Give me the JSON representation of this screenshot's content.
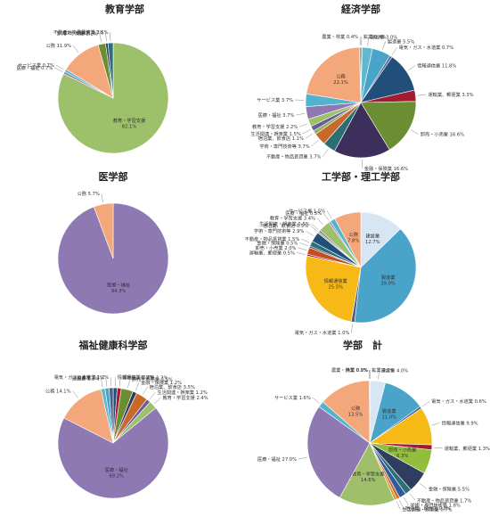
{
  "colors": {
    "education": "#9dc16a",
    "medical": "#8f79b3",
    "public": "#f4a77a",
    "service": "#52b3cf",
    "retail": "#2f5e8c",
    "finance": "#2f3e5f",
    "realestate": "#87a9d4",
    "mining": "#7a6aa7",
    "construction": "#61b8cd",
    "manufacturing": "#4aa3c8",
    "electric": "#4a5f8a",
    "infocomm": "#1f4f7a",
    "transport": "#a31b2f",
    "finance_g": "#6b8e33",
    "realestate_g": "#6b5a9a",
    "science": "#2c6e74",
    "hotel": "#c8692b",
    "living": "#8faf5a",
    "medical2": "#7c6aa8",
    "public2": "#f4a77a",
    "manufacturing_y": "#f6b916",
    "construction_w": "#d8e6f4",
    "agriculture": "#6f7f8f",
    "fishery": "#a0a0a0",
    "service2": "#52b3cf",
    "wholesale_g": "#93bd3c",
    "hotel2": "#2f5b9e",
    "living2": "#d99634",
    "edu2": "#9fbf6b",
    "infocomm_y": "#f6b916",
    "transport_r": "#c84b22",
    "realestate2": "#1f3f66"
  },
  "chart_data": [
    {
      "type": "pie",
      "title": "教育学部",
      "slices": [
        {
          "label": "教育・学習支援",
          "value": 82.1,
          "color": "#9dc16a",
          "inside": true
        },
        {
          "label": "医療・福祉",
          "value": 0.7,
          "color": "#8f79b3"
        },
        {
          "label": "サービス業",
          "value": 0.7,
          "color": "#52b3cf"
        },
        {
          "label": "公務",
          "value": 11.9,
          "color": "#f4a77a"
        },
        {
          "label": "卸売・小売業",
          "value": 2.2,
          "color": "#6b8e33"
        },
        {
          "label": "金融・保険業",
          "value": 0.7,
          "color": "#2f3e5f"
        },
        {
          "label": "不動産・物品賃貸業",
          "value": 1.5,
          "color": "#2c6e74"
        }
      ]
    },
    {
      "type": "pie",
      "title": "経済学部",
      "slices": [
        {
          "label": "鉱業",
          "value": 0.4,
          "color": "#7a6aa7"
        },
        {
          "label": "建設業",
          "value": 3.0,
          "color": "#61b8cd"
        },
        {
          "label": "製造業",
          "value": 5.5,
          "color": "#4aa3c8"
        },
        {
          "label": "電気・ガス・水道業",
          "value": 0.7,
          "color": "#4a5f8a"
        },
        {
          "label": "情報通信業",
          "value": 11.8,
          "color": "#1f4f7a"
        },
        {
          "label": "運輸業、郵便業",
          "value": 3.3,
          "color": "#a31b2f"
        },
        {
          "label": "卸売・小売業",
          "value": 16.6,
          "color": "#6b8e33"
        },
        {
          "label": "金融・保険業",
          "value": 16.6,
          "color": "#3c2f5c"
        },
        {
          "label": "不動産・物品賃貸業",
          "value": 3.7,
          "color": "#2c6e74"
        },
        {
          "label": "学術・専門技術等",
          "value": 3.7,
          "color": "#c8692b"
        },
        {
          "label": "宿泊業、飲食店",
          "value": 1.1,
          "color": "#8faf5a"
        },
        {
          "label": "生活関連・娯楽業",
          "value": 1.5,
          "color": "#6b5a9a"
        },
        {
          "label": "教育・学習支援",
          "value": 2.2,
          "color": "#9dc16a"
        },
        {
          "label": "医療・福祉",
          "value": 3.7,
          "color": "#8f79b3"
        },
        {
          "label": "サービス業",
          "value": 3.7,
          "color": "#52b3cf"
        },
        {
          "label": "公務",
          "value": 22.1,
          "color": "#f4a77a",
          "inside": true
        },
        {
          "label": "農業・林業",
          "value": 0.4,
          "color": "#6f7f8f"
        }
      ]
    },
    {
      "type": "pie",
      "title": "医学部",
      "slices": [
        {
          "label": "医療・福祉",
          "value": 94.3,
          "color": "#8f79b3",
          "inside": true
        },
        {
          "label": "公務",
          "value": 5.7,
          "color": "#f4a77a"
        }
      ]
    },
    {
      "type": "pie",
      "title": "工学部・理工学部",
      "slices": [
        {
          "label": "建設業",
          "value": 12.7,
          "color": "#d8e6f4",
          "inside": true
        },
        {
          "label": "製造業",
          "value": 39.0,
          "color": "#4aa3c8",
          "inside": true
        },
        {
          "label": "電気・ガス・水道業",
          "value": 1.0,
          "color": "#4a5f8a"
        },
        {
          "label": "情報通信業",
          "value": 25.5,
          "color": "#f6b916",
          "inside": true
        },
        {
          "label": "運輸業、郵便業",
          "value": 0.5,
          "color": "#a31b2f"
        },
        {
          "label": "卸売・小売業",
          "value": 2.0,
          "color": "#c84b22"
        },
        {
          "label": "金融・保険業",
          "value": 0.5,
          "color": "#2f3e5f"
        },
        {
          "label": "不動産・物品賃貸業",
          "value": 1.5,
          "color": "#2c6e74"
        },
        {
          "label": "学術・専門技術等",
          "value": 2.9,
          "color": "#1f4f7a"
        },
        {
          "label": "宿泊業、飲食店",
          "value": 0.5,
          "color": "#8faf5a"
        },
        {
          "label": "生活関連・娯楽業",
          "value": 0.5,
          "color": "#6b5a9a"
        },
        {
          "label": "教育・学習支援",
          "value": 3.4,
          "color": "#9dc16a"
        },
        {
          "label": "医療・福祉",
          "value": 0.5,
          "color": "#8f79b3"
        },
        {
          "label": "サービス業",
          "value": 1.5,
          "color": "#52b3cf"
        },
        {
          "label": "公務",
          "value": 7.8,
          "color": "#f4a77a",
          "inside": true
        }
      ]
    },
    {
      "type": "pie",
      "title": "福祉健康科学部",
      "slices": [
        {
          "label": "情報通信業",
          "value": 1.2,
          "color": "#1f4f7a"
        },
        {
          "label": "運輸業、郵便業",
          "value": 1.2,
          "color": "#a31b2f"
        },
        {
          "label": "卸売・小売業",
          "value": 3.5,
          "color": "#6b8e33"
        },
        {
          "label": "金融・保険業",
          "value": 1.2,
          "color": "#2f3e5f"
        },
        {
          "label": "宿泊業、飲食店",
          "value": 3.5,
          "color": "#c8692b"
        },
        {
          "label": "生活関連・娯楽業",
          "value": 1.2,
          "color": "#6b5a9a"
        },
        {
          "label": "教育・学習支援",
          "value": 2.4,
          "color": "#9dc16a"
        },
        {
          "label": "医療・福祉",
          "value": 69.2,
          "color": "#8f79b3",
          "inside": true
        },
        {
          "label": "公務",
          "value": 14.1,
          "color": "#f4a77a"
        },
        {
          "label": "建設業",
          "value": 1.2,
          "color": "#61b8cd"
        },
        {
          "label": "製造業",
          "value": 1.2,
          "color": "#4aa3c8"
        },
        {
          "label": "電気・ガス・水道業",
          "value": 1.2,
          "color": "#4a5f8a"
        }
      ]
    },
    {
      "type": "pie",
      "title": "学部　計",
      "slices": [
        {
          "label": "鉱業",
          "value": 0.1,
          "color": "#7a6aa7"
        },
        {
          "label": "建設業",
          "value": 4.0,
          "color": "#d8e6f4"
        },
        {
          "label": "製造業",
          "value": 11.0,
          "color": "#4aa3c8",
          "inside": true
        },
        {
          "label": "電気・ガス・水道業",
          "value": 0.6,
          "color": "#4a5f8a"
        },
        {
          "label": "情報通信業",
          "value": 9.9,
          "color": "#f6b916"
        },
        {
          "label": "運輸業、郵便業",
          "value": 1.3,
          "color": "#a31b2f"
        },
        {
          "label": "卸売・小売業",
          "value": 6.3,
          "color": "#93bd3c",
          "inside": true
        },
        {
          "label": "金融・保険業",
          "value": 5.5,
          "color": "#2f3e5f"
        },
        {
          "label": "不動産・物品賃貸業",
          "value": 1.7,
          "color": "#2c6e74"
        },
        {
          "label": "学術・専門技術等",
          "value": 1.8,
          "color": "#2f5b9e"
        },
        {
          "label": "宿泊業、飲食店",
          "value": 0.8,
          "color": "#c8692b"
        },
        {
          "label": "生活関連・娯楽業",
          "value": 0.7,
          "color": "#d99634"
        },
        {
          "label": "教育・学習支援",
          "value": 14.6,
          "color": "#9fbf6b",
          "inside": true
        },
        {
          "label": "医療・福祉",
          "value": 27.0,
          "color": "#8f79b3"
        },
        {
          "label": "サービス業",
          "value": 1.6,
          "color": "#52b3cf"
        },
        {
          "label": "公務",
          "value": 13.5,
          "color": "#f4a77a",
          "inside": true
        },
        {
          "label": "農業・林業",
          "value": 0.1,
          "color": "#6f7f8f"
        },
        {
          "label": "漁業",
          "value": 0.0,
          "color": "#a0a0a0"
        }
      ]
    }
  ]
}
